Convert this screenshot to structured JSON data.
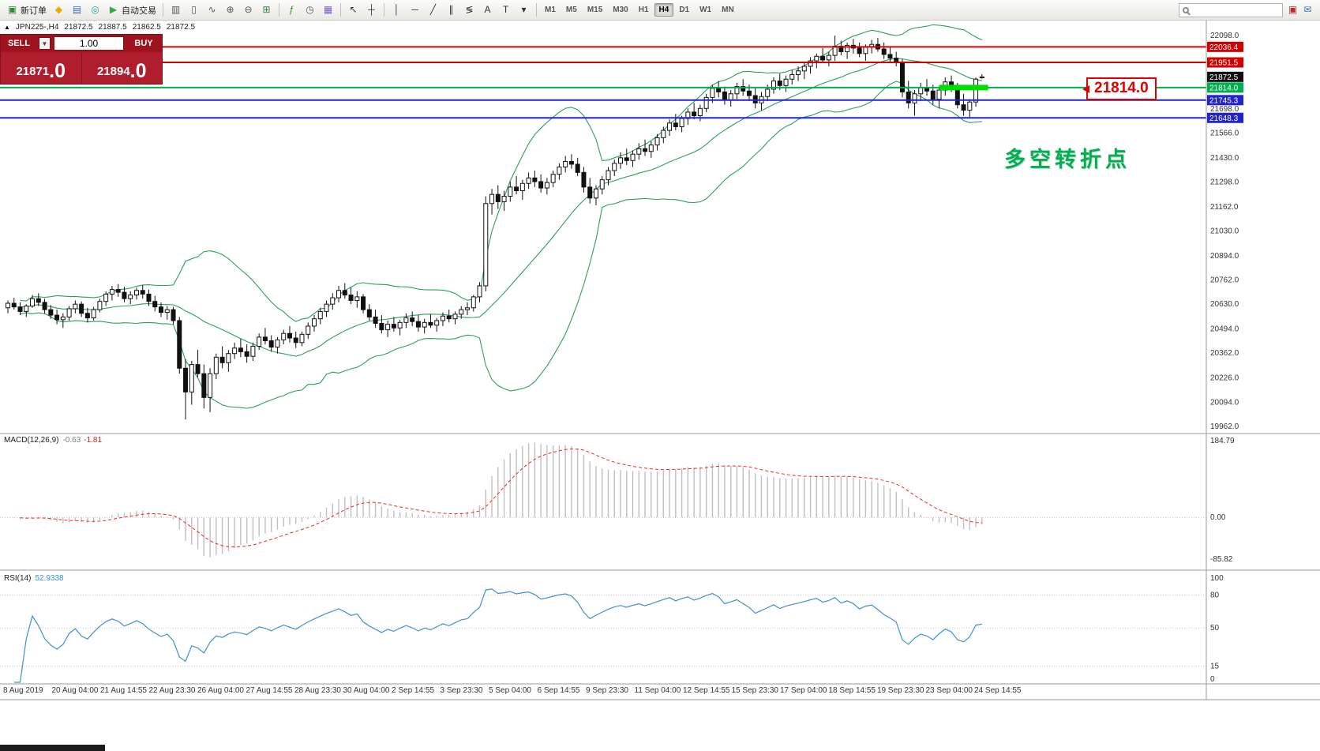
{
  "toolbar": {
    "groups": [
      {
        "items": [
          {
            "name": "new-order-button",
            "glyph": "▣",
            "color": "#2e8b2e",
            "label": "新订单"
          },
          {
            "name": "metaeditor-icon",
            "glyph": "◆",
            "color": "#e8a800"
          },
          {
            "name": "market-watch-icon",
            "glyph": "▤",
            "color": "#3a6db0"
          },
          {
            "name": "navigator-icon",
            "glyph": "◎",
            "color": "#2ba0a0"
          },
          {
            "name": "autotrading-button",
            "glyph": "▶",
            "color": "#2fae3e",
            "label": "自动交易"
          }
        ]
      },
      {
        "items": [
          {
            "name": "chart-bars-icon",
            "glyph": "▥",
            "color": "#555555"
          },
          {
            "name": "chart-candles-icon",
            "glyph": "▯",
            "color": "#555555"
          },
          {
            "name": "chart-line-icon",
            "glyph": "∿",
            "color": "#555555"
          },
          {
            "name": "zoom-in-icon",
            "glyph": "⊕",
            "color": "#555555"
          },
          {
            "name": "zoom-out-icon",
            "glyph": "⊖",
            "color": "#555555"
          },
          {
            "name": "tile-windows-icon",
            "glyph": "⊞",
            "color": "#3a7d44"
          }
        ]
      },
      {
        "items": [
          {
            "name": "indicators-icon",
            "glyph": "ƒ",
            "color": "#2e8b2e"
          },
          {
            "name": "periods-icon",
            "glyph": "◷",
            "color": "#555555"
          },
          {
            "name": "templates-icon",
            "glyph": "▦",
            "color": "#7a5cc0"
          }
        ]
      },
      {
        "items": [
          {
            "name": "cursor-icon",
            "glyph": "↖",
            "color": "#333333"
          },
          {
            "name": "crosshair-icon",
            "glyph": "┼",
            "color": "#333333"
          }
        ]
      },
      {
        "items": [
          {
            "name": "vertical-line-icon",
            "glyph": "│",
            "color": "#333333"
          },
          {
            "name": "horizontal-line-icon",
            "glyph": "─",
            "color": "#333333"
          },
          {
            "name": "trendline-icon",
            "glyph": "╱",
            "color": "#333333"
          },
          {
            "name": "channel-icon",
            "glyph": "∥",
            "color": "#333333"
          },
          {
            "name": "fibonacci-icon",
            "glyph": "≶",
            "color": "#333333"
          },
          {
            "name": "text-icon",
            "glyph": "A",
            "color": "#333333"
          },
          {
            "name": "label-icon",
            "glyph": "T",
            "color": "#333333"
          },
          {
            "name": "shapes-icon",
            "glyph": "▾",
            "color": "#333333"
          }
        ]
      }
    ],
    "timeframes": [
      "M1",
      "M5",
      "M15",
      "M30",
      "H1",
      "H4",
      "D1",
      "W1",
      "MN"
    ],
    "active_timeframe": "H4",
    "search_placeholder": "",
    "right_icons": [
      {
        "name": "alerts-icon",
        "glyph": "▣",
        "color": "#b03030"
      },
      {
        "name": "mail-icon",
        "glyph": "✉",
        "color": "#3b6fb5"
      }
    ]
  },
  "symbol_bar": {
    "symbol": "JPN225-,H4",
    "open": "21872.5",
    "high": "21887.5",
    "low": "21862.5",
    "close": "21872.5"
  },
  "trade_panel": {
    "sell_label": "SELL",
    "buy_label": "BUY",
    "volume": "1.00",
    "sell_price": "21871",
    "sell_price_frac": ".0",
    "buy_price": "21894",
    "buy_price_frac": ".0",
    "dropdown_glyph": "▼"
  },
  "annotation": {
    "text": "多空转折点",
    "color": "#00b050"
  },
  "callout": {
    "text": "21814.0",
    "color": "#e00000"
  },
  "indicators": {
    "macd": {
      "label": "MACD(12,26,9)",
      "value_main": "-0.63",
      "value_signal": "-1.81",
      "axis_max": "184.79",
      "axis_zero": "0.00",
      "axis_min": "-85.82"
    },
    "rsi": {
      "label": "RSI(14)",
      "value": "52.9338",
      "axis_labels": [
        100,
        80,
        50,
        15,
        0
      ]
    }
  },
  "chart_data": {
    "type": "candlestick",
    "title": "JPN225-,H4",
    "symbol": "JPN225-",
    "timeframe": "H4",
    "ylim": [
      19940,
      22120
    ],
    "grid": false,
    "ohlc": [
      [
        20610,
        20650,
        20580,
        20635
      ],
      [
        20635,
        20665,
        20600,
        20615
      ],
      [
        20615,
        20640,
        20570,
        20590
      ],
      [
        20590,
        20630,
        20560,
        20620
      ],
      [
        20620,
        20680,
        20610,
        20660
      ],
      [
        20660,
        20690,
        20620,
        20640
      ],
      [
        20640,
        20660,
        20580,
        20600
      ],
      [
        20600,
        20625,
        20550,
        20570
      ],
      [
        20570,
        20600,
        20520,
        20545
      ],
      [
        20545,
        20580,
        20500,
        20560
      ],
      [
        20560,
        20620,
        20540,
        20605
      ],
      [
        20605,
        20650,
        20580,
        20630
      ],
      [
        20630,
        20645,
        20560,
        20580
      ],
      [
        20580,
        20610,
        20530,
        20555
      ],
      [
        20555,
        20615,
        20540,
        20600
      ],
      [
        20600,
        20660,
        20585,
        20645
      ],
      [
        20645,
        20700,
        20620,
        20685
      ],
      [
        20685,
        20730,
        20650,
        20710
      ],
      [
        20710,
        20740,
        20670,
        20695
      ],
      [
        20695,
        20725,
        20640,
        20660
      ],
      [
        20660,
        20700,
        20630,
        20680
      ],
      [
        20680,
        20720,
        20655,
        20705
      ],
      [
        20705,
        20735,
        20660,
        20685
      ],
      [
        20685,
        20710,
        20620,
        20645
      ],
      [
        20645,
        20675,
        20590,
        20615
      ],
      [
        20615,
        20640,
        20560,
        20585
      ],
      [
        20585,
        20620,
        20545,
        20600
      ],
      [
        20600,
        20615,
        20520,
        20540
      ],
      [
        20540,
        20560,
        20250,
        20280
      ],
      [
        20280,
        20330,
        20000,
        20150
      ],
      [
        20150,
        20320,
        20080,
        20300
      ],
      [
        20300,
        20380,
        20230,
        20250
      ],
      [
        20250,
        20300,
        20060,
        20120
      ],
      [
        20120,
        20280,
        20040,
        20250
      ],
      [
        20250,
        20360,
        20220,
        20340
      ],
      [
        20340,
        20400,
        20280,
        20310
      ],
      [
        20310,
        20380,
        20260,
        20360
      ],
      [
        20360,
        20420,
        20330,
        20390
      ],
      [
        20390,
        20440,
        20340,
        20370
      ],
      [
        20370,
        20410,
        20310,
        20345
      ],
      [
        20345,
        20420,
        20320,
        20400
      ],
      [
        20400,
        20470,
        20380,
        20450
      ],
      [
        20450,
        20500,
        20410,
        20430
      ],
      [
        20430,
        20460,
        20370,
        20395
      ],
      [
        20395,
        20450,
        20360,
        20435
      ],
      [
        20435,
        20490,
        20410,
        20470
      ],
      [
        20470,
        20510,
        20420,
        20445
      ],
      [
        20445,
        20480,
        20390,
        20420
      ],
      [
        20420,
        20480,
        20400,
        20465
      ],
      [
        20465,
        20530,
        20440,
        20510
      ],
      [
        20510,
        20570,
        20480,
        20550
      ],
      [
        20550,
        20610,
        20520,
        20590
      ],
      [
        20590,
        20650,
        20560,
        20630
      ],
      [
        20630,
        20690,
        20600,
        20665
      ],
      [
        20665,
        20730,
        20640,
        20705
      ],
      [
        20705,
        20745,
        20660,
        20680
      ],
      [
        20680,
        20720,
        20630,
        20650
      ],
      [
        20650,
        20700,
        20610,
        20670
      ],
      [
        20670,
        20685,
        20580,
        20600
      ],
      [
        20600,
        20630,
        20540,
        20560
      ],
      [
        20560,
        20600,
        20500,
        20525
      ],
      [
        20525,
        20570,
        20470,
        20490
      ],
      [
        20490,
        20540,
        20450,
        20520
      ],
      [
        20520,
        20560,
        20480,
        20500
      ],
      [
        20500,
        20545,
        20460,
        20530
      ],
      [
        20530,
        20580,
        20500,
        20555
      ],
      [
        20555,
        20590,
        20510,
        20535
      ],
      [
        20535,
        20570,
        20480,
        20505
      ],
      [
        20505,
        20550,
        20470,
        20530
      ],
      [
        20530,
        20575,
        20500,
        20515
      ],
      [
        20515,
        20555,
        20480,
        20540
      ],
      [
        20540,
        20585,
        20510,
        20565
      ],
      [
        20565,
        20600,
        20530,
        20550
      ],
      [
        20550,
        20590,
        20520,
        20575
      ],
      [
        20575,
        20620,
        20550,
        20600
      ],
      [
        20600,
        20640,
        20570,
        20610
      ],
      [
        20610,
        20680,
        20590,
        20670
      ],
      [
        20670,
        20750,
        20640,
        20730
      ],
      [
        20730,
        21220,
        20700,
        21180
      ],
      [
        21180,
        21260,
        21120,
        21230
      ],
      [
        21230,
        21280,
        21150,
        21190
      ],
      [
        21190,
        21250,
        21140,
        21220
      ],
      [
        21220,
        21300,
        21190,
        21270
      ],
      [
        21270,
        21330,
        21230,
        21250
      ],
      [
        21250,
        21310,
        21200,
        21290
      ],
      [
        21290,
        21350,
        21260,
        21320
      ],
      [
        21320,
        21360,
        21270,
        21300
      ],
      [
        21300,
        21340,
        21240,
        21265
      ],
      [
        21265,
        21320,
        21230,
        21295
      ],
      [
        21295,
        21360,
        21270,
        21340
      ],
      [
        21340,
        21400,
        21310,
        21380
      ],
      [
        21380,
        21440,
        21350,
        21410
      ],
      [
        21410,
        21450,
        21370,
        21395
      ],
      [
        21395,
        21430,
        21330,
        21350
      ],
      [
        21350,
        21380,
        21240,
        21270
      ],
      [
        21270,
        21320,
        21180,
        21210
      ],
      [
        21210,
        21280,
        21170,
        21260
      ],
      [
        21260,
        21330,
        21230,
        21310
      ],
      [
        21310,
        21380,
        21280,
        21360
      ],
      [
        21360,
        21420,
        21330,
        21400
      ],
      [
        21400,
        21460,
        21370,
        21430
      ],
      [
        21430,
        21480,
        21390,
        21415
      ],
      [
        21415,
        21470,
        21380,
        21450
      ],
      [
        21450,
        21510,
        21420,
        21480
      ],
      [
        21480,
        21530,
        21440,
        21465
      ],
      [
        21465,
        21520,
        21430,
        21500
      ],
      [
        21500,
        21560,
        21470,
        21540
      ],
      [
        21540,
        21600,
        21510,
        21580
      ],
      [
        21580,
        21640,
        21550,
        21620
      ],
      [
        21620,
        21670,
        21580,
        21600
      ],
      [
        21600,
        21660,
        21570,
        21645
      ],
      [
        21645,
        21700,
        21610,
        21680
      ],
      [
        21680,
        21730,
        21640,
        21660
      ],
      [
        21660,
        21720,
        21630,
        21700
      ],
      [
        21700,
        21780,
        21680,
        21760
      ],
      [
        21760,
        21830,
        21730,
        21810
      ],
      [
        21810,
        21850,
        21760,
        21790
      ],
      [
        21790,
        21820,
        21720,
        21745
      ],
      [
        21745,
        21800,
        21710,
        21780
      ],
      [
        21780,
        21840,
        21750,
        21820
      ],
      [
        21820,
        21860,
        21770,
        21795
      ],
      [
        21795,
        21830,
        21740,
        21770
      ],
      [
        21770,
        21810,
        21700,
        21730
      ],
      [
        21730,
        21790,
        21690,
        21765
      ],
      [
        21765,
        21830,
        21740,
        21805
      ],
      [
        21805,
        21870,
        21780,
        21850
      ],
      [
        21850,
        21890,
        21800,
        21825
      ],
      [
        21825,
        21880,
        21790,
        21860
      ],
      [
        21860,
        21910,
        21830,
        21885
      ],
      [
        21885,
        21930,
        21850,
        21905
      ],
      [
        21905,
        21950,
        21860,
        21930
      ],
      [
        21930,
        21980,
        21890,
        21960
      ],
      [
        21960,
        22000,
        21920,
        21985
      ],
      [
        21985,
        22030,
        21950,
        21965
      ],
      [
        21965,
        22010,
        21930,
        21990
      ],
      [
        21990,
        22098,
        21960,
        22040
      ],
      [
        22040,
        22070,
        21990,
        22010
      ],
      [
        22010,
        22060,
        21970,
        22045
      ],
      [
        22045,
        22080,
        22000,
        22030
      ],
      [
        22030,
        22060,
        21980,
        22000
      ],
      [
        22000,
        22050,
        21960,
        22035
      ],
      [
        22035,
        22075,
        22000,
        22050
      ],
      [
        22050,
        22085,
        22010,
        22025
      ],
      [
        22025,
        22060,
        21970,
        21995
      ],
      [
        21995,
        22040,
        21950,
        21975
      ],
      [
        21975,
        22010,
        21930,
        21950
      ],
      [
        21950,
        21970,
        21760,
        21790
      ],
      [
        21790,
        21850,
        21700,
        21730
      ],
      [
        21730,
        21800,
        21660,
        21780
      ],
      [
        21780,
        21840,
        21740,
        21815
      ],
      [
        21815,
        21860,
        21770,
        21795
      ],
      [
        21795,
        21830,
        21720,
        21750
      ],
      [
        21750,
        21820,
        21700,
        21800
      ],
      [
        21800,
        21870,
        21770,
        21845
      ],
      [
        21845,
        21880,
        21790,
        21815
      ],
      [
        21815,
        21840,
        21700,
        21720
      ],
      [
        21720,
        21780,
        21660,
        21690
      ],
      [
        21690,
        21750,
        21650,
        21735
      ],
      [
        21735,
        21870,
        21710,
        21860
      ],
      [
        21872.5,
        21887.5,
        21862.5,
        21872.5
      ]
    ],
    "price_axis_ticks": [
      22098.0,
      21698.0,
      21566.0,
      21430.0,
      21298.0,
      21162.0,
      21030.0,
      20894.0,
      20762.0,
      20630.0,
      20494.0,
      20362.0,
      20226.0,
      20094.0,
      19962.0
    ],
    "price_tags": [
      {
        "value": 22036.4,
        "color": "#d40000"
      },
      {
        "value": 21951.5,
        "color": "#d40000"
      },
      {
        "value": 21872.5,
        "color": "#111111"
      },
      {
        "value": 21814.0,
        "color": "#00b050"
      },
      {
        "value": 21745.3,
        "color": "#2323cc"
      },
      {
        "value": 21648.3,
        "color": "#2323cc"
      }
    ],
    "hlines": [
      {
        "price": 22036.4,
        "color": "#d40000",
        "width": 2
      },
      {
        "price": 21951.5,
        "color": "#d40000",
        "width": 2
      },
      {
        "price": 21814.0,
        "color": "#00b050",
        "width": 2
      },
      {
        "price": 21745.3,
        "color": "#2323cc",
        "width": 2
      },
      {
        "price": 21648.3,
        "color": "#2323cc",
        "width": 2
      }
    ],
    "highlight_segment": {
      "price": 21814.0,
      "color": "#00dd00",
      "from_bar": 152,
      "to_bar": 160
    },
    "time_labels": [
      "8 Aug 2019",
      "20 Aug 04:00",
      "21 Aug 14:55",
      "22 Aug 23:30",
      "26 Aug 04:00",
      "27 Aug 14:55",
      "28 Aug 23:30",
      "30 Aug 04:00",
      "2 Sep 14:55",
      "3 Sep 23:30",
      "5 Sep 04:00",
      "6 Sep 14:55",
      "9 Sep 23:30",
      "11 Sep 04:00",
      "12 Sep 14:55",
      "15 Sep 23:30",
      "17 Sep 04:00",
      "18 Sep 14:55",
      "19 Sep 23:30",
      "23 Sep 04:00",
      "24 Sep 14:55"
    ],
    "bollinger": {
      "period": 20,
      "deviation": 2,
      "color": "#2aa05a"
    },
    "macd": {
      "fast": 12,
      "slow": 26,
      "signal_period": 9,
      "hist_color": "#bfbfbf",
      "signal_color": "#ff2020"
    },
    "rsi": {
      "period": 14,
      "color": "#3f8edb",
      "levels": [
        80,
        50,
        15
      ]
    }
  }
}
